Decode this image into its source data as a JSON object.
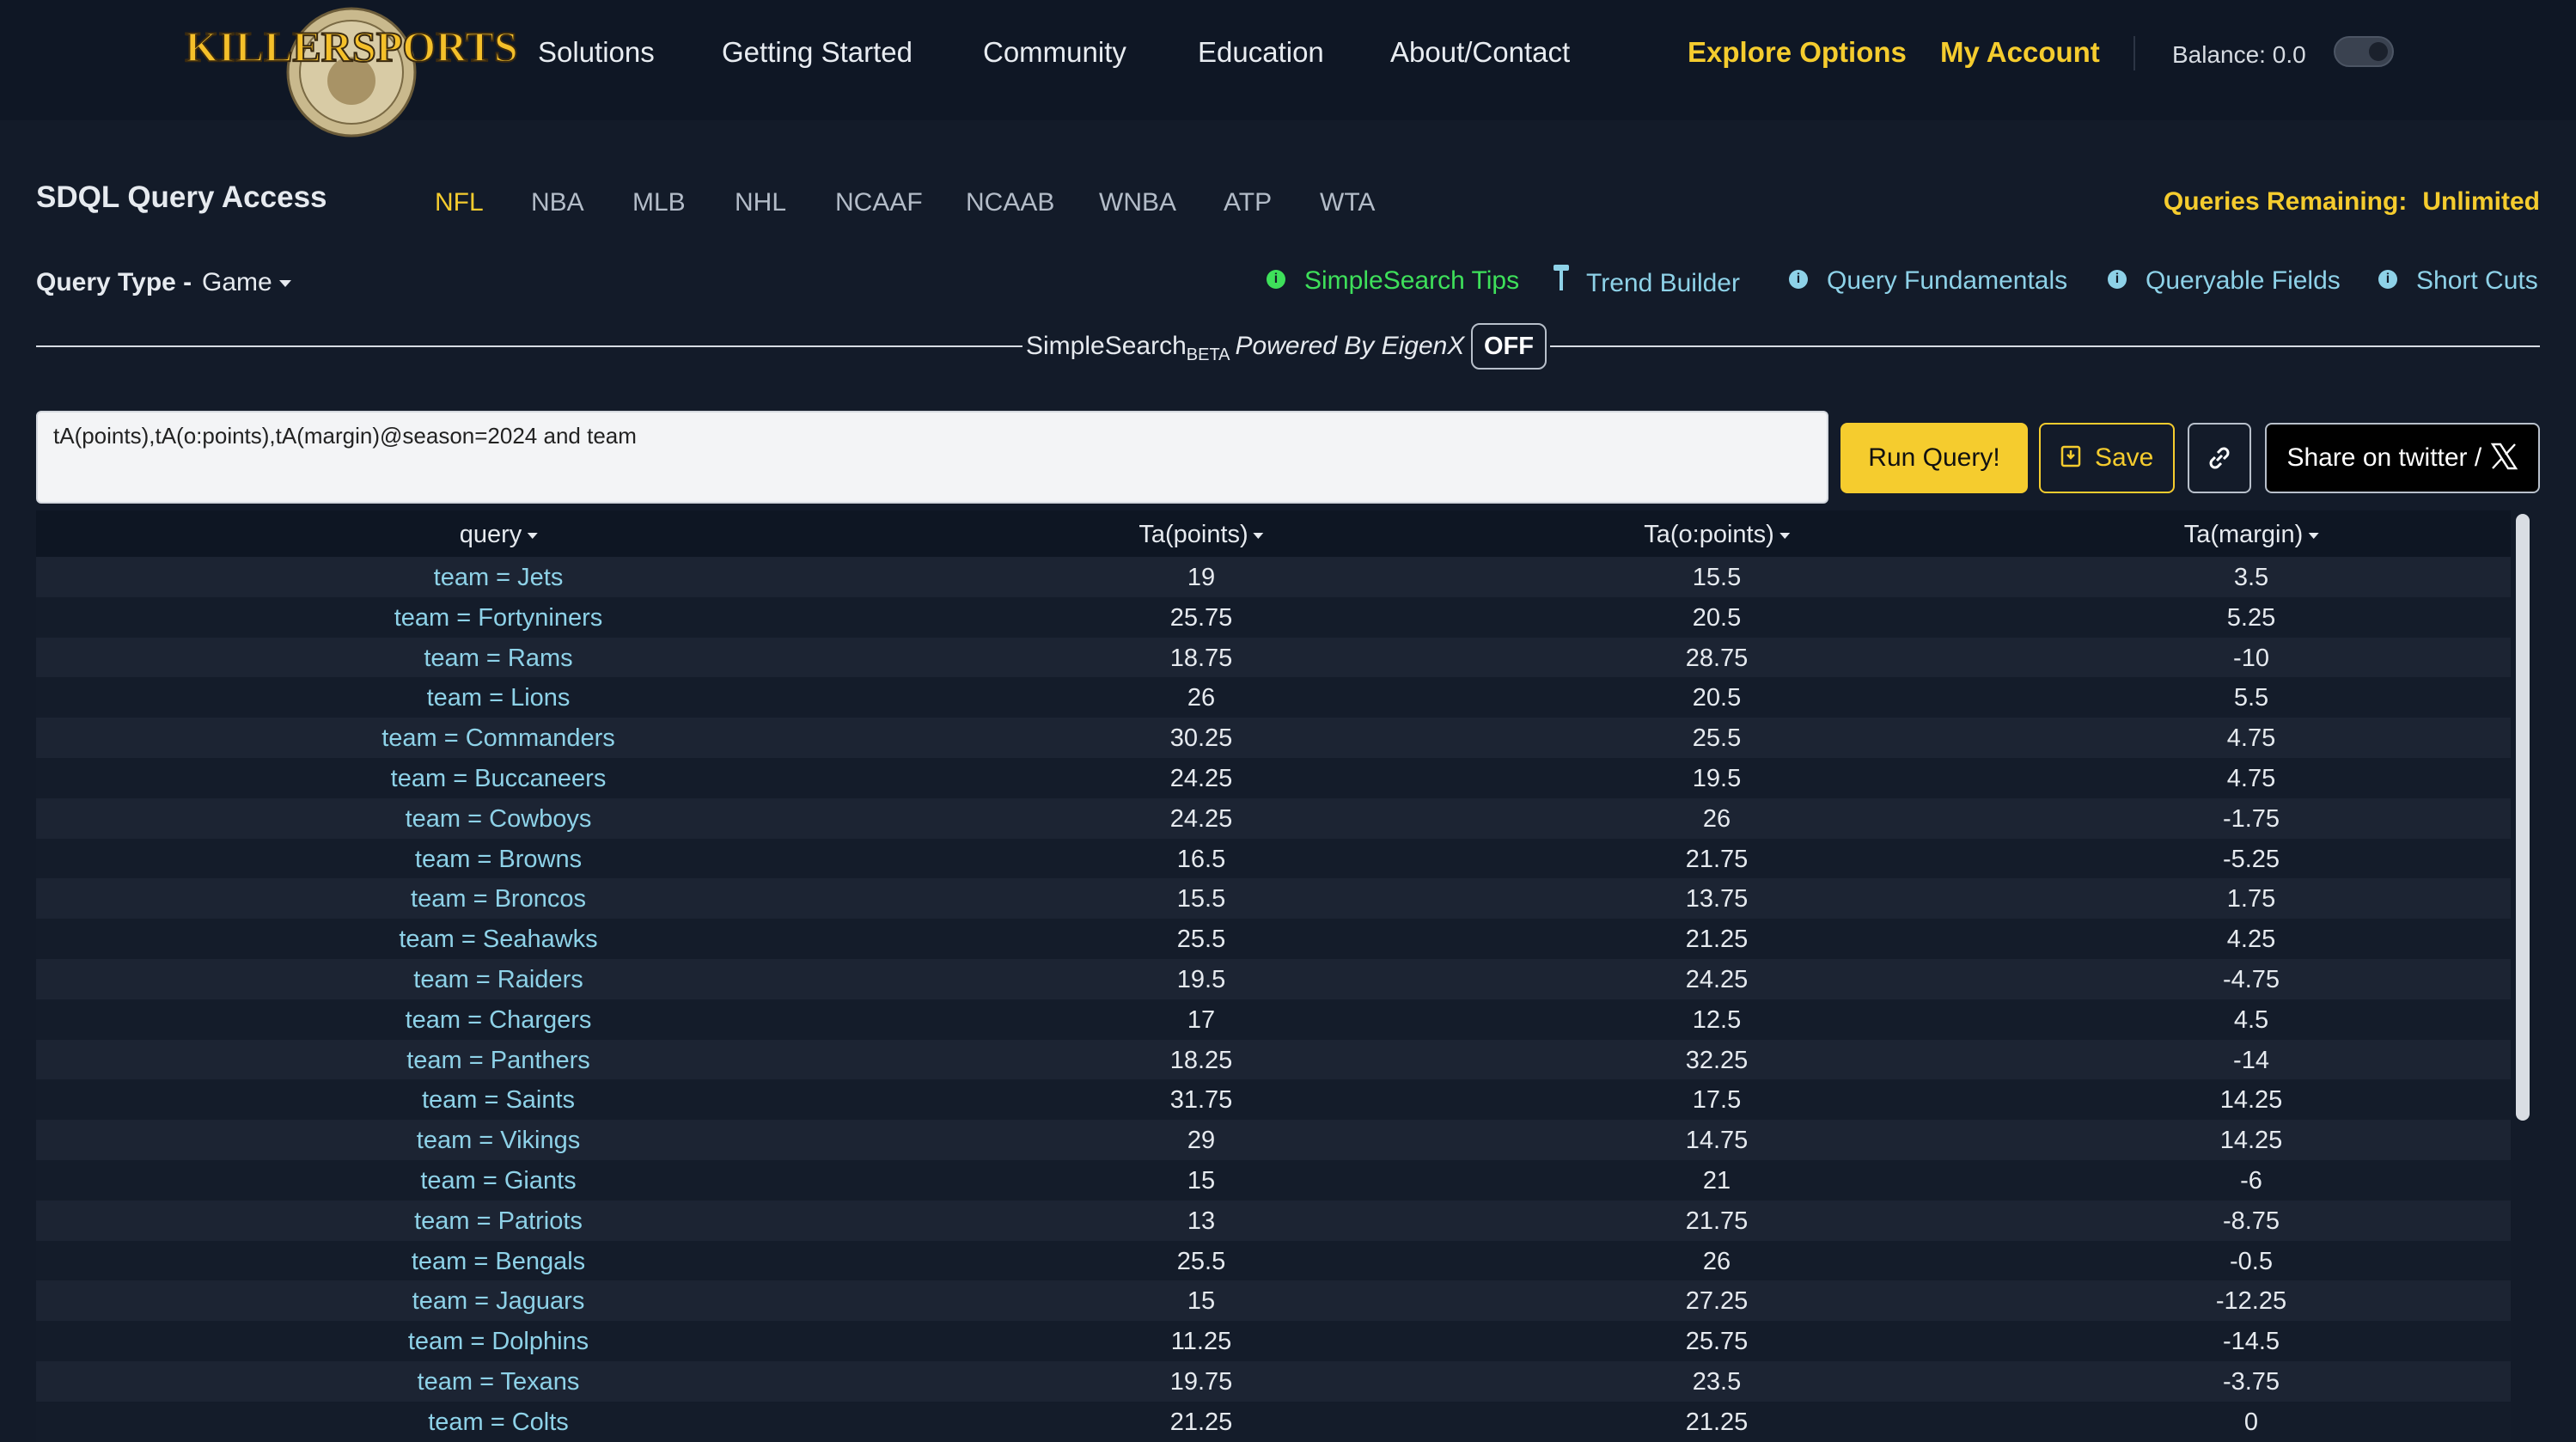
{
  "brand": {
    "logo_text": "KILLERSPORTS"
  },
  "nav": {
    "items": [
      "Solutions",
      "Getting Started",
      "Community",
      "Education",
      "About/Contact"
    ],
    "explore": "Explore Options",
    "account": "My Account",
    "balance": "Balance: 0.0"
  },
  "sdql": {
    "title": "SDQL Query Access",
    "sports": [
      "NFL",
      "NBA",
      "MLB",
      "NHL",
      "NCAAF",
      "NCAAB",
      "WNBA",
      "ATP",
      "WTA"
    ],
    "active_sport": "NFL",
    "queries_label": "Queries Remaining:",
    "queries_value": "Unlimited"
  },
  "query_type": {
    "label": "Query Type -",
    "value": "Game"
  },
  "tools": {
    "simplesearch_tips": "SimpleSearch Tips",
    "trend_builder": "Trend Builder",
    "query_fundamentals": "Query Fundamentals",
    "queryable_fields": "Queryable Fields",
    "short_cuts": "Short Cuts"
  },
  "simplesearch": {
    "label": "SimpleSearch",
    "beta": "BETA",
    "powered": "Powered By EigenX",
    "state": "OFF"
  },
  "query": {
    "text": "tA(points),tA(o:points),tA(margin)@season=2024 and team"
  },
  "buttons": {
    "run": "Run Query!",
    "save": "Save",
    "share": "Share on twitter /"
  },
  "table": {
    "headers": [
      "query",
      "Ta(points)",
      "Ta(o:points)",
      "Ta(margin)"
    ],
    "rows": [
      [
        "team = Jets",
        "19",
        "15.5",
        "3.5"
      ],
      [
        "team = Fortyniners",
        "25.75",
        "20.5",
        "5.25"
      ],
      [
        "team = Rams",
        "18.75",
        "28.75",
        "-10"
      ],
      [
        "team = Lions",
        "26",
        "20.5",
        "5.5"
      ],
      [
        "team = Commanders",
        "30.25",
        "25.5",
        "4.75"
      ],
      [
        "team = Buccaneers",
        "24.25",
        "19.5",
        "4.75"
      ],
      [
        "team = Cowboys",
        "24.25",
        "26",
        "-1.75"
      ],
      [
        "team = Browns",
        "16.5",
        "21.75",
        "-5.25"
      ],
      [
        "team = Broncos",
        "15.5",
        "13.75",
        "1.75"
      ],
      [
        "team = Seahawks",
        "25.5",
        "21.25",
        "4.25"
      ],
      [
        "team = Raiders",
        "19.5",
        "24.25",
        "-4.75"
      ],
      [
        "team = Chargers",
        "17",
        "12.5",
        "4.5"
      ],
      [
        "team = Panthers",
        "18.25",
        "32.25",
        "-14"
      ],
      [
        "team = Saints",
        "31.75",
        "17.5",
        "14.25"
      ],
      [
        "team = Vikings",
        "29",
        "14.75",
        "14.25"
      ],
      [
        "team = Giants",
        "15",
        "21",
        "-6"
      ],
      [
        "team = Patriots",
        "13",
        "21.75",
        "-8.75"
      ],
      [
        "team = Bengals",
        "25.5",
        "26",
        "-0.5"
      ],
      [
        "team = Jaguars",
        "15",
        "27.25",
        "-12.25"
      ],
      [
        "team = Dolphins",
        "11.25",
        "25.75",
        "-14.5"
      ],
      [
        "team = Texans",
        "19.75",
        "23.5",
        "-3.75"
      ],
      [
        "team = Colts",
        "21.25",
        "21.25",
        "0"
      ]
    ]
  },
  "colors": {
    "accent": "#f5cc2e",
    "link": "#8ed2e8",
    "green": "#3ee05a",
    "background": "#131b29"
  }
}
